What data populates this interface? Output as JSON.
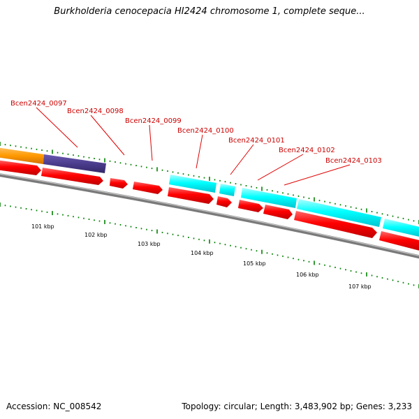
{
  "header": {
    "title": "Burkholderia cenocepacia HI2424 chromosome 1, complete seque..."
  },
  "footer": {
    "accession": "Accession: NC_008542",
    "summary": "Topology: circular; Length: 3,483,902 bp; Genes: 3,233"
  },
  "colors": {
    "backbone": "#888888",
    "forward_gene": "#ff0000",
    "cds_feature": "#00ffff",
    "orange_feature": "#ff9900",
    "purple_feature": "#4b3c8c",
    "tick": "#008000",
    "label": "#cc0000"
  },
  "gene_labels": [
    {
      "text": "Bcen2424_0097"
    },
    {
      "text": "Bcen2424_0098"
    },
    {
      "text": "Bcen2424_0099"
    },
    {
      "text": "Bcen2424_0100"
    },
    {
      "text": "Bcen2424_0101"
    },
    {
      "text": "Bcen2424_0102"
    },
    {
      "text": "Bcen2424_0103"
    }
  ],
  "kbp_labels": [
    {
      "text": "101 kbp"
    },
    {
      "text": "102 kbp"
    },
    {
      "text": "103 kbp"
    },
    {
      "text": "104 kbp"
    },
    {
      "text": "105 kbp"
    },
    {
      "text": "106 kbp"
    },
    {
      "text": "107 kbp"
    }
  ]
}
